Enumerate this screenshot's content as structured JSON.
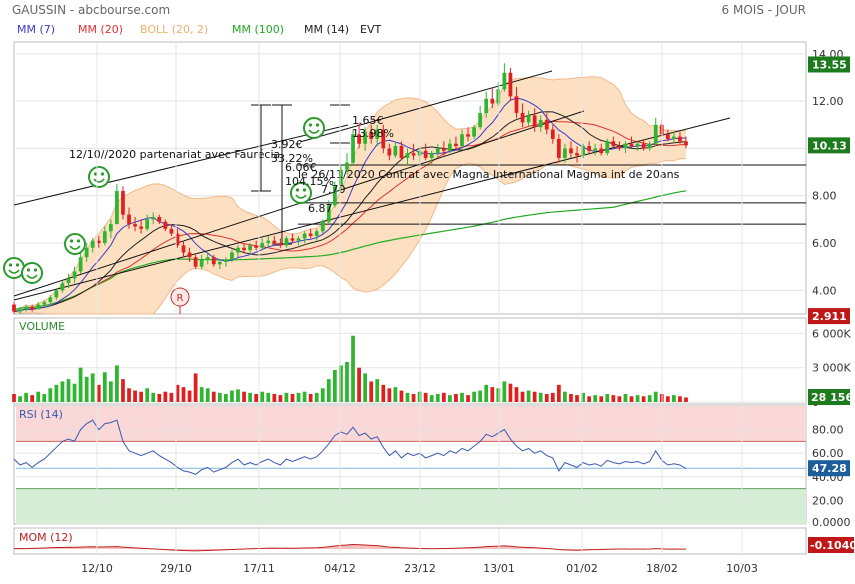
{
  "header": {
    "title": "GAUSSIN - abcbourse.com",
    "period": "6 MOIS - JOUR"
  },
  "legend": [
    {
      "label": "MM (7)",
      "color": "#3a3acc"
    },
    {
      "label": "MM (20)",
      "color": "#e03030"
    },
    {
      "label": "BOLL (20, 2)",
      "color": "#f0b070"
    },
    {
      "label": "MM (100)",
      "color": "#22aa22"
    },
    {
      "label": "MM (14)",
      "color": "#222222"
    },
    {
      "label": "EVT",
      "color": "#222222"
    }
  ],
  "colors": {
    "up": "#2fb52f",
    "down": "#e02020",
    "boll_fill": "#fde0c2",
    "boll_line": "#f2b98a"
  },
  "chart_data": [
    {
      "type": "candlestick",
      "name": "price",
      "ylim": [
        3,
        14.5
      ],
      "yticks": [
        "14.00",
        "12.00",
        "10.00",
        "8.00",
        "6.00",
        "4.00"
      ],
      "xticks": [
        "12/10",
        "29/10",
        "17/11",
        "04/12",
        "23/12",
        "13/01",
        "01/02",
        "18/02",
        "10/03"
      ],
      "badges": [
        {
          "label": "13.55",
          "value": 13.55,
          "color": "#1d7a1d"
        },
        {
          "label": "10.13",
          "value": 10.13,
          "color": "#1d7a1d"
        },
        {
          "label": "2.911",
          "value": 2.911,
          "color": "#c01818"
        }
      ],
      "hlines": [
        9.3,
        7.7,
        6.8
      ],
      "annotations": [
        "12/10//2020  partenariat avec Faurécia",
        "le 26/11/2020 Contrat avec Magna International Magma int de 20ans",
        "3.92€",
        "33.22%",
        "6.06€",
        "104.15%",
        "1.65€",
        "13.98%",
        "7.70",
        "6.87"
      ],
      "ohlc": [
        [
          3.4,
          3.5,
          3.0,
          3.1
        ],
        [
          3.1,
          3.3,
          3.0,
          3.2
        ],
        [
          3.2,
          3.4,
          3.1,
          3.3
        ],
        [
          3.3,
          3.4,
          3.1,
          3.2
        ],
        [
          3.2,
          3.5,
          3.2,
          3.4
        ],
        [
          3.4,
          3.6,
          3.3,
          3.5
        ],
        [
          3.5,
          3.8,
          3.4,
          3.7
        ],
        [
          3.7,
          4.1,
          3.6,
          4.0
        ],
        [
          4.0,
          4.4,
          3.9,
          4.3
        ],
        [
          4.3,
          4.7,
          4.1,
          4.5
        ],
        [
          4.5,
          5.0,
          4.3,
          4.8
        ],
        [
          4.8,
          5.6,
          4.7,
          5.4
        ],
        [
          5.4,
          6.0,
          5.2,
          5.8
        ],
        [
          5.8,
          6.2,
          5.6,
          6.1
        ],
        [
          6.1,
          6.3,
          5.8,
          6.0
        ],
        [
          6.0,
          6.7,
          5.9,
          6.5
        ],
        [
          6.5,
          7.0,
          6.2,
          6.8
        ],
        [
          6.8,
          8.5,
          6.8,
          8.2
        ],
        [
          8.2,
          8.4,
          7.0,
          7.2
        ],
        [
          7.2,
          7.5,
          6.6,
          6.8
        ],
        [
          6.8,
          7.1,
          6.5,
          6.7
        ],
        [
          6.7,
          7.0,
          6.4,
          6.6
        ],
        [
          6.6,
          7.2,
          6.5,
          7.0
        ],
        [
          7.0,
          7.3,
          6.8,
          7.1
        ],
        [
          7.1,
          7.2,
          6.8,
          6.9
        ],
        [
          6.9,
          7.0,
          6.5,
          6.6
        ],
        [
          6.6,
          6.8,
          6.3,
          6.4
        ],
        [
          6.4,
          6.6,
          5.8,
          5.9
        ],
        [
          5.9,
          6.1,
          5.4,
          5.6
        ],
        [
          5.6,
          5.8,
          5.2,
          5.4
        ],
        [
          5.4,
          5.5,
          4.9,
          5.0
        ],
        [
          5.0,
          5.5,
          4.9,
          5.3
        ],
        [
          5.3,
          5.6,
          5.1,
          5.4
        ],
        [
          5.4,
          5.5,
          5.0,
          5.1
        ],
        [
          5.1,
          5.3,
          4.9,
          5.2
        ],
        [
          5.2,
          5.4,
          5.0,
          5.3
        ],
        [
          5.3,
          5.7,
          5.2,
          5.6
        ],
        [
          5.6,
          5.9,
          5.4,
          5.8
        ],
        [
          5.8,
          6.0,
          5.6,
          5.7
        ],
        [
          5.7,
          6.0,
          5.5,
          5.9
        ],
        [
          5.9,
          6.1,
          5.7,
          5.8
        ],
        [
          5.8,
          6.2,
          5.7,
          6.0
        ],
        [
          6.0,
          6.3,
          5.8,
          6.1
        ],
        [
          6.1,
          6.3,
          5.9,
          6.0
        ],
        [
          6.0,
          6.2,
          5.8,
          5.9
        ],
        [
          5.9,
          6.3,
          5.8,
          6.2
        ],
        [
          6.2,
          6.4,
          6.0,
          6.1
        ],
        [
          6.1,
          6.3,
          5.9,
          6.2
        ],
        [
          6.2,
          6.5,
          6.0,
          6.4
        ],
        [
          6.4,
          6.6,
          6.2,
          6.3
        ],
        [
          6.3,
          6.6,
          6.1,
          6.5
        ],
        [
          6.5,
          7.0,
          6.4,
          6.9
        ],
        [
          6.9,
          7.8,
          6.8,
          7.6
        ],
        [
          7.6,
          8.6,
          7.5,
          8.4
        ],
        [
          8.4,
          9.3,
          8.2,
          9.1
        ],
        [
          9.1,
          9.8,
          8.9,
          9.4
        ],
        [
          9.4,
          10.8,
          9.3,
          10.6
        ],
        [
          10.6,
          11.1,
          10.0,
          10.2
        ],
        [
          10.2,
          10.9,
          9.9,
          10.7
        ],
        [
          10.7,
          11.0,
          10.2,
          10.4
        ],
        [
          10.4,
          11.0,
          10.1,
          10.8
        ],
        [
          10.8,
          11.0,
          9.8,
          10.0
        ],
        [
          10.0,
          10.2,
          9.5,
          9.7
        ],
        [
          9.7,
          10.3,
          9.6,
          10.1
        ],
        [
          10.1,
          10.3,
          9.5,
          9.6
        ],
        [
          9.6,
          10.0,
          9.3,
          9.8
        ],
        [
          9.8,
          10.2,
          9.5,
          9.7
        ],
        [
          9.7,
          10.1,
          9.4,
          9.9
        ],
        [
          9.9,
          10.2,
          9.5,
          9.6
        ],
        [
          9.6,
          9.9,
          9.3,
          9.8
        ],
        [
          9.8,
          10.2,
          9.6,
          10.0
        ],
        [
          10.0,
          10.3,
          9.7,
          9.9
        ],
        [
          9.9,
          10.4,
          9.8,
          10.2
        ],
        [
          10.2,
          10.5,
          10.0,
          10.1
        ],
        [
          10.1,
          10.8,
          10.0,
          10.6
        ],
        [
          10.6,
          10.9,
          10.3,
          10.5
        ],
        [
          10.5,
          11.0,
          10.4,
          10.9
        ],
        [
          10.9,
          11.8,
          10.8,
          11.5
        ],
        [
          11.5,
          12.4,
          11.3,
          12.1
        ],
        [
          12.1,
          12.6,
          11.7,
          11.9
        ],
        [
          11.9,
          12.8,
          11.8,
          12.5
        ],
        [
          12.5,
          13.6,
          12.4,
          13.2
        ],
        [
          13.2,
          13.4,
          12.0,
          12.2
        ],
        [
          12.2,
          12.6,
          11.3,
          11.5
        ],
        [
          11.5,
          11.9,
          10.9,
          11.1
        ],
        [
          11.1,
          11.6,
          10.9,
          11.4
        ],
        [
          11.4,
          11.7,
          10.7,
          10.9
        ],
        [
          10.9,
          11.4,
          10.7,
          11.2
        ],
        [
          11.2,
          11.5,
          10.6,
          10.8
        ],
        [
          10.8,
          11.0,
          10.2,
          10.4
        ],
        [
          10.4,
          10.6,
          9.4,
          9.6
        ],
        [
          9.6,
          10.2,
          9.4,
          10.0
        ],
        [
          10.0,
          10.3,
          9.6,
          9.8
        ],
        [
          9.8,
          10.1,
          9.4,
          9.7
        ],
        [
          9.7,
          10.2,
          9.6,
          10.1
        ],
        [
          10.1,
          10.3,
          9.8,
          9.9
        ],
        [
          9.9,
          10.2,
          9.7,
          10.0
        ],
        [
          10.0,
          10.2,
          9.7,
          9.8
        ],
        [
          9.8,
          10.4,
          9.7,
          10.3
        ],
        [
          10.3,
          10.5,
          10.0,
          10.1
        ],
        [
          10.1,
          10.3,
          9.9,
          10.0
        ],
        [
          10.0,
          10.3,
          9.8,
          10.2
        ],
        [
          10.2,
          10.5,
          10.0,
          10.1
        ],
        [
          10.1,
          10.3,
          9.9,
          10.2
        ],
        [
          10.2,
          10.4,
          9.9,
          10.0
        ],
        [
          10.0,
          10.3,
          9.9,
          10.2
        ],
        [
          10.2,
          11.3,
          10.1,
          11.0
        ],
        [
          11.0,
          11.2,
          10.5,
          10.6
        ],
        [
          10.6,
          10.8,
          10.3,
          10.4
        ],
        [
          10.4,
          10.7,
          10.2,
          10.5
        ],
        [
          10.5,
          10.7,
          10.2,
          10.3
        ],
        [
          10.3,
          10.5,
          10.0,
          10.13
        ]
      ]
    },
    {
      "type": "bar",
      "name": "VOLUME",
      "title": "VOLUME",
      "ylim": [
        0,
        7000
      ],
      "yticks": [
        "6 000K",
        "3 000K",
        "0"
      ],
      "badge": "28 156",
      "values": [
        700,
        500,
        800,
        600,
        900,
        700,
        1200,
        1500,
        1800,
        2000,
        1600,
        3000,
        2200,
        2500,
        1500,
        2600,
        1800,
        3200,
        2000,
        1200,
        1000,
        900,
        1200,
        800,
        700,
        900,
        800,
        1500,
        1300,
        1000,
        2500,
        1300,
        1200,
        900,
        800,
        700,
        1000,
        1100,
        900,
        800,
        700,
        900,
        800,
        700,
        600,
        800,
        700,
        800,
        900,
        700,
        800,
        1200,
        2000,
        2800,
        3200,
        3500,
        5800,
        3000,
        2500,
        1800,
        2000,
        1500,
        1200,
        1300,
        1000,
        800,
        700,
        900,
        800,
        600,
        700,
        800,
        600,
        700,
        800,
        600,
        900,
        1000,
        1500,
        1300,
        1200,
        1800,
        1600,
        1300,
        900,
        1000,
        900,
        800,
        700,
        800,
        1500,
        900,
        700,
        600,
        800,
        500,
        600,
        500,
        700,
        600,
        500,
        700,
        500,
        600,
        500,
        600,
        900,
        700,
        500,
        600,
        500,
        400
      ]
    },
    {
      "type": "line",
      "name": "RSI (14)",
      "title": "RSI (14)",
      "ylim": [
        0,
        100
      ],
      "yticks": [
        "80.00",
        "60.00",
        "40.00",
        "20.00",
        "0.0000"
      ],
      "badge": "47.28",
      "zones": [
        {
          "from": 70,
          "to": 100,
          "color": "#fbd8d8"
        },
        {
          "from": 0,
          "to": 30,
          "color": "#d5ecd5"
        }
      ],
      "values": [
        55,
        50,
        52,
        48,
        52,
        55,
        60,
        65,
        70,
        72,
        70,
        80,
        85,
        88,
        80,
        85,
        86,
        88,
        70,
        62,
        60,
        58,
        60,
        62,
        58,
        55,
        52,
        48,
        45,
        44,
        42,
        46,
        48,
        44,
        46,
        48,
        52,
        55,
        50,
        52,
        50,
        53,
        55,
        52,
        50,
        55,
        53,
        55,
        57,
        55,
        57,
        62,
        68,
        75,
        78,
        76,
        82,
        75,
        77,
        72,
        74,
        65,
        58,
        62,
        56,
        60,
        58,
        60,
        56,
        58,
        60,
        58,
        62,
        60,
        64,
        62,
        66,
        70,
        76,
        74,
        77,
        80,
        72,
        66,
        62,
        64,
        60,
        62,
        58,
        56,
        45,
        52,
        50,
        48,
        52,
        50,
        51,
        49,
        54,
        52,
        51,
        53,
        52,
        53,
        51,
        53,
        62,
        54,
        50,
        51,
        50,
        47
      ]
    },
    {
      "type": "line",
      "name": "MOM (12)",
      "title": "MOM (12)",
      "badge": "-0.1040",
      "values": [
        0.3,
        0.4,
        0.3,
        0.5,
        0.6,
        0.8,
        1.0,
        1.2,
        1.3,
        1.5,
        1.4,
        1.6,
        1.8,
        1.9,
        1.7,
        1.8,
        1.9,
        2.0,
        1.6,
        1.2,
        0.9,
        0.6,
        0.3,
        0.1,
        -0.2,
        -0.5,
        -0.8,
        -1.0,
        -1.3,
        -1.5,
        -1.6,
        -1.4,
        -1.2,
        -1.0,
        -0.8,
        -0.6,
        -0.4,
        -0.2,
        0.0,
        0.2,
        0.4,
        0.5,
        0.6,
        0.7,
        0.6,
        0.7,
        0.6,
        0.7,
        0.8,
        0.9,
        1.0,
        1.4,
        1.9,
        2.5,
        3.0,
        3.3,
        3.8,
        3.5,
        3.3,
        3.0,
        2.8,
        2.2,
        1.6,
        1.4,
        1.0,
        0.8,
        0.6,
        0.4,
        0.3,
        0.2,
        0.3,
        0.4,
        0.5,
        0.6,
        0.8,
        1.0,
        1.3,
        1.6,
        2.0,
        2.2,
        2.4,
        2.6,
        2.3,
        1.8,
        1.5,
        1.3,
        1.0,
        0.7,
        0.4,
        0.1,
        -0.5,
        -0.7,
        -0.9,
        -1.0,
        -0.8,
        -0.6,
        -0.5,
        -0.4,
        -0.2,
        -0.1,
        0.0,
        0.0,
        -0.1,
        0.0,
        -0.1,
        0.0,
        0.3,
        0.1,
        -0.1,
        0.0,
        -0.1,
        -0.1
      ]
    }
  ]
}
